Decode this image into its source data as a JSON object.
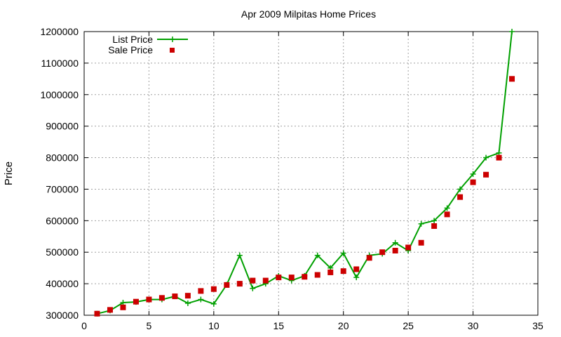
{
  "chart_data": {
    "type": "line",
    "title": "Apr 2009 Milpitas Home Prices",
    "xlabel": "",
    "ylabel": "Price",
    "xlim": [
      0,
      35
    ],
    "ylim": [
      300000,
      1200000
    ],
    "xticks": [
      0,
      5,
      10,
      15,
      20,
      25,
      30,
      35
    ],
    "yticks": [
      300000,
      400000,
      500000,
      600000,
      700000,
      800000,
      900000,
      1000000,
      1100000,
      1200000
    ],
    "grid": true,
    "legend_position": "top-left",
    "series": [
      {
        "name": "List Price",
        "style": "line-with-plus-markers",
        "color": "#00a000",
        "x": [
          1,
          2,
          3,
          4,
          5,
          6,
          7,
          8,
          9,
          10,
          11,
          12,
          13,
          14,
          15,
          16,
          17,
          18,
          19,
          20,
          21,
          22,
          23,
          24,
          25,
          26,
          27,
          28,
          29,
          30,
          31,
          32,
          33
        ],
        "values": [
          305000,
          315000,
          340000,
          342000,
          350000,
          350000,
          360000,
          338000,
          350000,
          336000,
          397000,
          490000,
          385000,
          400000,
          425000,
          410000,
          425000,
          490000,
          450000,
          497000,
          420000,
          490000,
          495000,
          530000,
          505000,
          590000,
          600000,
          640000,
          700000,
          748000,
          800000,
          815000,
          1200000
        ]
      },
      {
        "name": "Sale Price",
        "style": "square-markers",
        "color": "#cc0000",
        "x": [
          1,
          2,
          3,
          4,
          5,
          6,
          7,
          8,
          9,
          10,
          11,
          12,
          13,
          14,
          15,
          16,
          17,
          18,
          19,
          20,
          21,
          22,
          23,
          24,
          25,
          26,
          27,
          28,
          29,
          30,
          31,
          32,
          33
        ],
        "values": [
          305000,
          317000,
          325000,
          343000,
          350000,
          355000,
          360000,
          362000,
          377000,
          383000,
          396000,
          400000,
          410000,
          410000,
          420000,
          420000,
          422000,
          428000,
          436000,
          440000,
          446000,
          482000,
          500000,
          505000,
          515000,
          530000,
          583000,
          620000,
          675000,
          722000,
          746000,
          800000,
          1050000
        ]
      }
    ]
  }
}
